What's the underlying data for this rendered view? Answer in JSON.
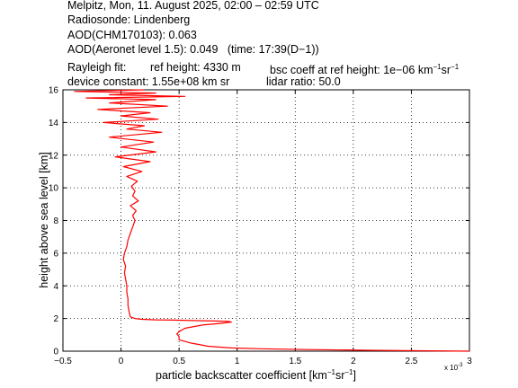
{
  "header": {
    "line1": "Melpitz, Mon, 11. August 2025, 02:00 – 02:59 UTC",
    "line2": "Radiosonde: Lindenberg",
    "line3": "AOD(CHM170103): 0.063",
    "line4": "AOD(Aeronet level 1.5): 0.049   (time: 17:39(D−1))",
    "rayleigh_label": "Rayleigh fit:",
    "ref_height": "ref height: 4330 m",
    "bsc_coeff": "bsc coeff at ref height: 1e−06 km",
    "device_constant": "device constant: 1.55e+08 km sr",
    "lidar_ratio": "lidar ratio: 50.0"
  },
  "chart_data": {
    "type": "line",
    "xlabel": "particle backscatter coefficient [km",
    "ylabel": "height above sea level [km]",
    "x_multiplier": "x 10",
    "x_multiplier_exp": "-3",
    "xlim": [
      -0.5,
      3
    ],
    "ylim": [
      0,
      16
    ],
    "xticks": [
      -0.5,
      0,
      0.5,
      1,
      1.5,
      2,
      2.5,
      3
    ],
    "xtick_labels": [
      "−0.5",
      "0",
      "0.5",
      "1",
      "1.5",
      "2",
      "2.5",
      "3"
    ],
    "yticks": [
      0,
      2,
      4,
      6,
      8,
      10,
      12,
      14,
      16
    ],
    "ytick_labels": [
      "0",
      "2",
      "4",
      "6",
      "8",
      "10",
      "12",
      "14",
      "16"
    ],
    "grid": true,
    "series": [
      {
        "color": "#ff0000",
        "x": [
          3.0,
          2.2,
          1.6,
          1.2,
          0.95,
          0.75,
          0.6,
          0.5,
          0.5,
          0.48,
          0.5,
          0.55,
          0.7,
          0.85,
          0.95,
          0.93,
          0.8,
          0.65,
          0.45,
          0.3,
          0.18,
          0.12,
          0.08,
          0.07,
          0.06,
          0.06,
          0.05,
          0.05,
          0.04,
          0.03,
          0.04,
          0.02,
          0.03,
          0.05,
          0.06,
          0.08,
          0.1,
          0.12,
          0.1,
          0.13,
          0.08,
          0.15,
          0.1,
          0.12,
          0.09,
          0.14,
          0.05,
          0.18,
          0.02,
          0.25,
          -0.05,
          0.3,
          0.0,
          0.28,
          -0.1,
          0.35,
          0.05,
          0.2,
          -0.15,
          0.32,
          0.0,
          0.25,
          -0.2,
          0.4,
          -0.1,
          0.3,
          -0.3,
          0.55,
          -0.1,
          0.3,
          -0.4,
          0.2
        ],
        "y": [
          0.0,
          0.05,
          0.1,
          0.15,
          0.2,
          0.3,
          0.5,
          0.7,
          0.9,
          1.05,
          1.2,
          1.4,
          1.6,
          1.7,
          1.78,
          1.82,
          1.85,
          1.87,
          1.9,
          1.92,
          1.95,
          2.0,
          2.1,
          2.4,
          2.8,
          3.2,
          3.6,
          4.0,
          4.4,
          4.8,
          5.2,
          5.6,
          6.0,
          6.4,
          6.8,
          7.2,
          7.6,
          8.0,
          8.3,
          8.6,
          8.9,
          9.2,
          9.5,
          9.8,
          10.1,
          10.4,
          10.7,
          11.0,
          11.3,
          11.6,
          11.9,
          12.2,
          12.5,
          12.8,
          13.1,
          13.4,
          13.6,
          13.8,
          14.0,
          14.2,
          14.4,
          14.6,
          14.8,
          15.0,
          15.2,
          15.4,
          15.5,
          15.6,
          15.7,
          15.8,
          15.9,
          16.0
        ]
      }
    ]
  }
}
